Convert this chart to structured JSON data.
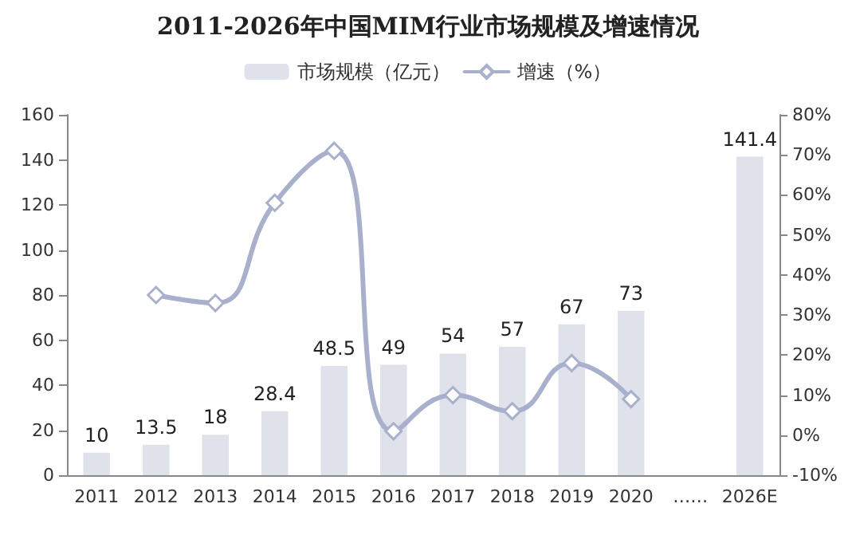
{
  "chart_data": {
    "type": "bar",
    "title": "2011-2026年中国MIM行业市场规模及增速情况",
    "categories": [
      "2011",
      "2012",
      "2013",
      "2014",
      "2015",
      "2016",
      "2017",
      "2018",
      "2019",
      "2020",
      "……",
      "2026E"
    ],
    "series": [
      {
        "name": "市场规模（亿元）",
        "color": "#dfe2ea",
        "values": [
          10,
          13.5,
          18,
          28.4,
          48.5,
          49,
          54,
          57,
          67,
          73,
          null,
          141.4
        ],
        "data_labels": true
      },
      {
        "name": "增速（%）",
        "type": "line",
        "axis": "y2",
        "color": "#a9b0cc",
        "marker": "diamond",
        "values": [
          null,
          35,
          33,
          58,
          71,
          1,
          10,
          6,
          18,
          9,
          null,
          null
        ]
      }
    ],
    "ylim": [
      0,
      160
    ],
    "yticks": [
      0,
      20,
      40,
      60,
      80,
      100,
      120,
      140,
      160
    ],
    "y2lim": [
      -10,
      80
    ],
    "y2ticks": [
      {
        "value": -10,
        "label": "-10%"
      },
      {
        "value": 0,
        "label": "0%"
      },
      {
        "value": 10,
        "label": "10%"
      },
      {
        "value": 20,
        "label": "20%"
      },
      {
        "value": 30,
        "label": "30%"
      },
      {
        "value": 40,
        "label": "40%"
      },
      {
        "value": 50,
        "label": "50%"
      },
      {
        "value": 60,
        "label": "60%"
      },
      {
        "value": 70,
        "label": "70%"
      },
      {
        "value": 80,
        "label": "80%"
      }
    ],
    "legend": "top",
    "grid": false
  }
}
